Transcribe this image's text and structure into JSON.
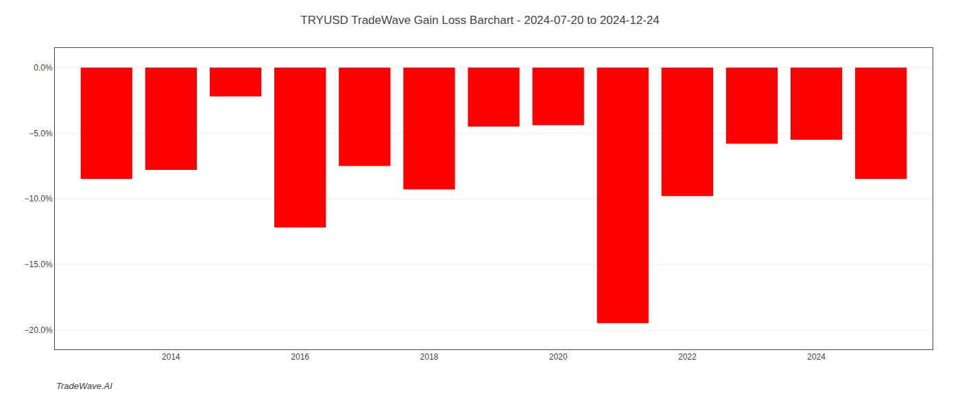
{
  "chart_data": {
    "type": "bar",
    "title": "TRYUSD TradeWave Gain Loss Barchart - 2024-07-20 to 2024-12-24",
    "annotations": [
      "TradeWave.AI"
    ],
    "x": [
      2013,
      2014,
      2015,
      2016,
      2017,
      2018,
      2019,
      2020,
      2021,
      2022,
      2023,
      2024,
      2025
    ],
    "values": [
      -8.5,
      -7.8,
      -2.2,
      -12.2,
      -7.5,
      -9.3,
      -4.5,
      -4.4,
      -19.5,
      -9.8,
      -5.8,
      -5.5,
      -8.5
    ],
    "color": "#ff0000",
    "xlim": [
      2012.2,
      2025.8
    ],
    "xticks": [
      2014,
      2016,
      2018,
      2020,
      2022,
      2024
    ],
    "ylim": [
      -21.5,
      1.5
    ],
    "yticks": [
      {
        "value": 0.0,
        "label": "0.0%"
      },
      {
        "value": -5.0,
        "label": "−5.0%"
      },
      {
        "value": -10.0,
        "label": "−10.0%"
      },
      {
        "value": -15.0,
        "label": "−15.0%"
      },
      {
        "value": -20.0,
        "label": "−20.0%"
      }
    ],
    "grid": true
  }
}
